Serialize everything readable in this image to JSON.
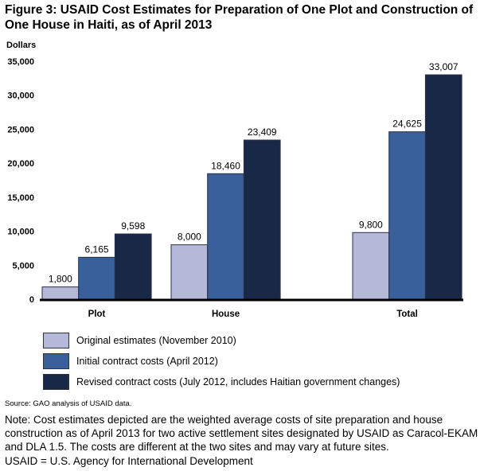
{
  "title": "Figure 3: USAID Cost Estimates for Preparation of One Plot and Construction of One House in Haiti, as of April 2013",
  "chart_data": {
    "type": "bar",
    "title": "Figure 3: USAID Cost Estimates for Preparation of One Plot and Construction of One House in Haiti, as of April 2013",
    "xlabel": "",
    "ylabel": "Dollars",
    "ylim": [
      0,
      35000
    ],
    "yticks": [
      0,
      5000,
      10000,
      15000,
      20000,
      25000,
      30000,
      35000
    ],
    "ytick_labels": [
      "0",
      "5,000",
      "10,000",
      "15,000",
      "20,000",
      "25,000",
      "30,000",
      "35,000"
    ],
    "grid": false,
    "categories": [
      "Plot",
      "House",
      "Total"
    ],
    "series": [
      {
        "name": "Original estimates (November 2010)",
        "color": "#b4b9da",
        "values": [
          1800,
          8000,
          9800
        ],
        "labels": [
          "1,800",
          "8,000",
          "9,800"
        ]
      },
      {
        "name": "Initial contract costs (April 2012)",
        "color": "#3a609c",
        "values": [
          6165,
          18460,
          24625
        ],
        "labels": [
          "6,165",
          "18,460",
          "24,625"
        ]
      },
      {
        "name": "Revised contract costs (July 2012, includes Haitian government changes)",
        "color": "#1a2848",
        "values": [
          9598,
          23409,
          33007
        ],
        "labels": [
          "9,598",
          "23,409",
          "33,007"
        ]
      }
    ],
    "legend_position": "bottom-left"
  },
  "source": "Source: GAO analysis of USAID data.",
  "note": "Note: Cost estimates depicted are the weighted average costs of site preparation and house construction as of April 2013 for two active settlement sites designated by USAID as Caracol-EKAM and DLA 1.5. The costs are different at the two sites and may vary at future sites.",
  "abbreviation": "USAID = U.S. Agency for International Development"
}
